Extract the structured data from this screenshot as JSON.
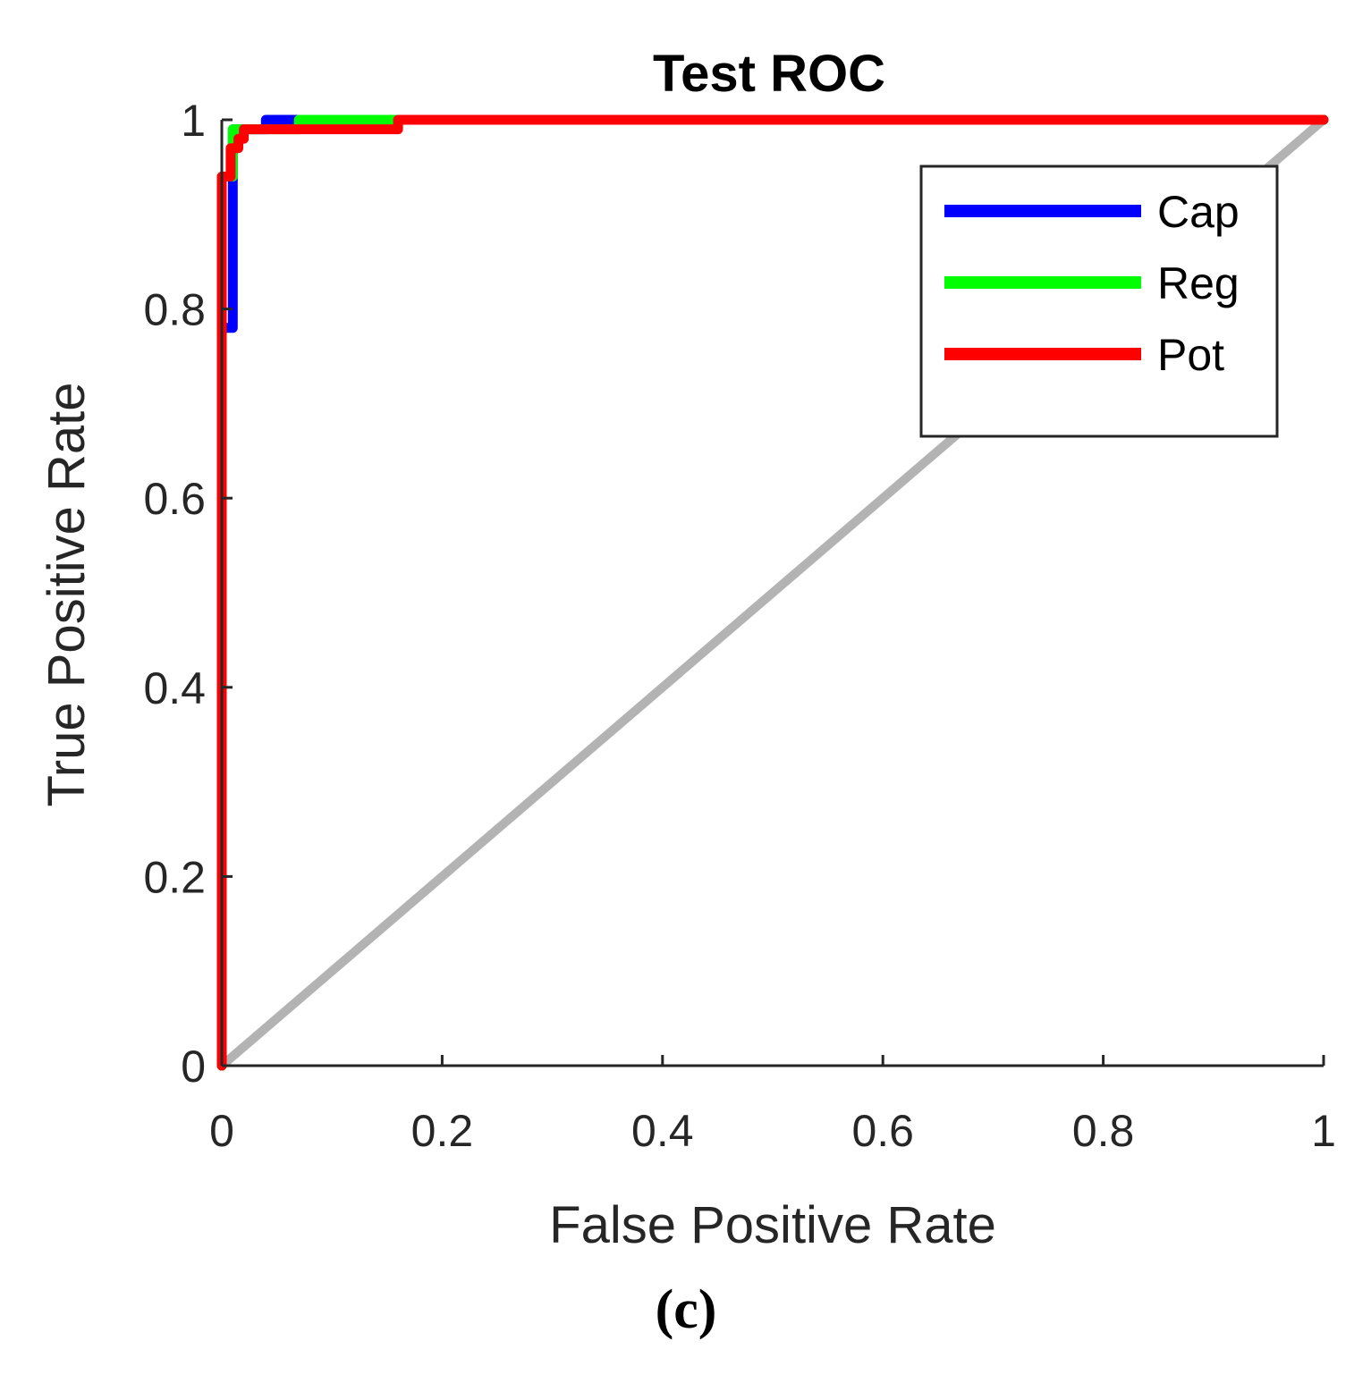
{
  "chart_data": {
    "type": "line",
    "title": "Test ROC",
    "xlabel": "False Positive Rate",
    "ylabel": "True Positive Rate",
    "caption": "(c)",
    "xlim": [
      0,
      1
    ],
    "ylim": [
      0,
      1
    ],
    "xticks": [
      "0",
      "0.2",
      "0.4",
      "0.6",
      "0.8",
      "1"
    ],
    "yticks": [
      "0",
      "0.2",
      "0.4",
      "0.6",
      "0.8",
      "1"
    ],
    "grid": false,
    "legend_position": "top-right",
    "reference_line": {
      "name": "chance",
      "color": "#b3b3b3",
      "x": [
        0,
        1
      ],
      "y": [
        0,
        1
      ]
    },
    "series": [
      {
        "name": "Cap",
        "color": "#0000ff",
        "x": [
          0,
          0,
          0.01,
          0.01,
          0.01,
          0.04,
          0.04,
          1
        ],
        "y": [
          0,
          0.78,
          0.78,
          0.93,
          0.99,
          0.99,
          1,
          1
        ]
      },
      {
        "name": "Reg",
        "color": "#00ff00",
        "x": [
          0,
          0,
          0.01,
          0.01,
          0.07,
          0.07,
          1
        ],
        "y": [
          0,
          0.94,
          0.94,
          0.99,
          0.99,
          1,
          1
        ]
      },
      {
        "name": "Pot",
        "color": "#ff0000",
        "x": [
          0,
          0,
          0.008,
          0.008,
          0.015,
          0.015,
          0.02,
          0.02,
          0.16,
          0.16,
          1
        ],
        "y": [
          0,
          0.94,
          0.94,
          0.97,
          0.97,
          0.98,
          0.98,
          0.99,
          0.99,
          1,
          1
        ]
      }
    ]
  }
}
